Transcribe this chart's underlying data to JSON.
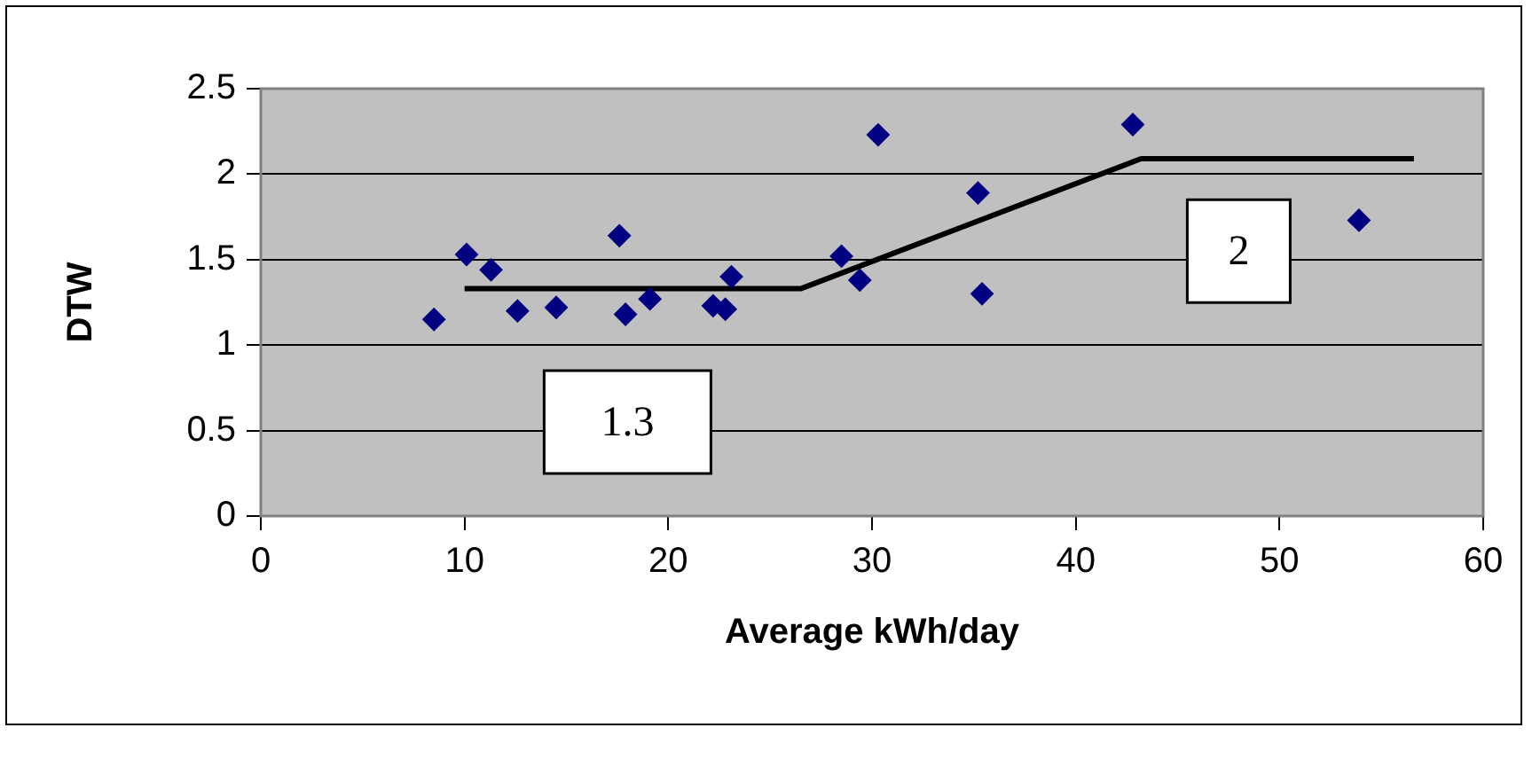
{
  "chart_data": {
    "type": "scatter",
    "xlabel": "Average kWh/day",
    "ylabel": "DTW",
    "xlim": [
      0,
      60
    ],
    "xticks": [
      0,
      10,
      20,
      30,
      40,
      50,
      60
    ],
    "ylim": [
      0,
      2.5
    ],
    "yticks": [
      0,
      0.5,
      1,
      1.5,
      2,
      2.5
    ],
    "grid": "y",
    "legend": false,
    "marker": "diamond",
    "series": [
      {
        "color": "#000080",
        "x": [
          8.5,
          10.1,
          11.3,
          12.6,
          14.5,
          17.6,
          17.9,
          19.1,
          22.2,
          22.8,
          23.1,
          28.5,
          29.4,
          30.3,
          35.2,
          35.4,
          42.8,
          53.9
        ],
        "values": [
          1.15,
          1.53,
          1.44,
          1.2,
          1.22,
          1.64,
          1.18,
          1.27,
          1.23,
          1.21,
          1.4,
          1.52,
          1.38,
          2.23,
          1.89,
          1.3,
          2.29,
          1.73
        ]
      },
      {
        "type": "line",
        "color": "#000000",
        "marker": "none",
        "x": [
          10,
          26.5,
          43.2,
          56.6
        ],
        "values": [
          1.33,
          1.33,
          2.09,
          2.09
        ]
      }
    ],
    "annotations": [
      "1.3",
      "2"
    ]
  }
}
